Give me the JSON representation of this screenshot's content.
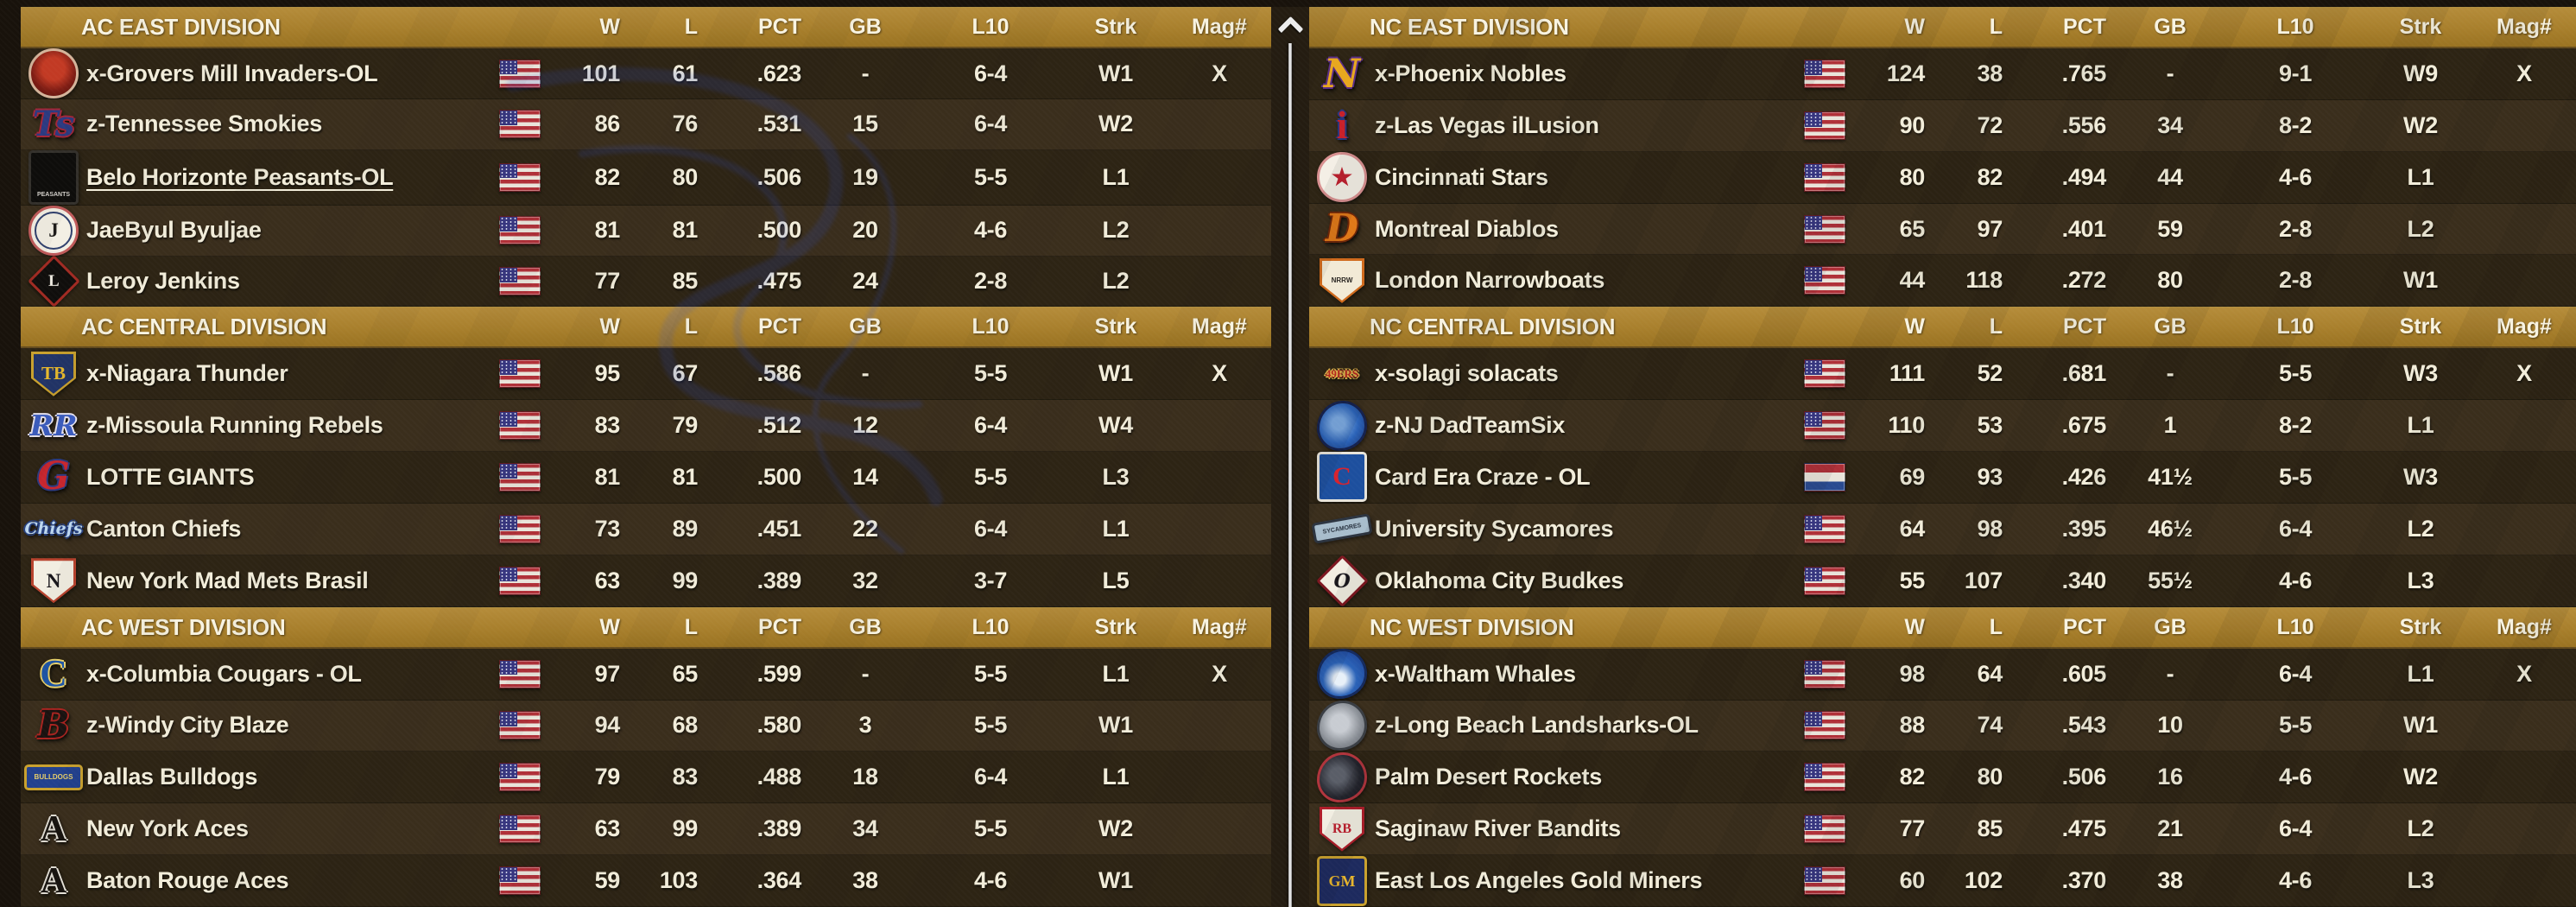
{
  "columns": [
    "W",
    "L",
    "PCT",
    "GB",
    "L10",
    "Strk",
    "Mag#"
  ],
  "scroll": {
    "direction": "up"
  },
  "panels": [
    {
      "side": "left",
      "divisions": [
        {
          "title": "AC EAST DIVISION",
          "teams": [
            {
              "name": "x-Grovers Mill Invaders-OL",
              "flag": "usa",
              "w": "101",
              "l": "61",
              "pct": ".623",
              "gb": "-",
              "l10": "6-4",
              "strk": "W1",
              "mag": "X",
              "logo": {
                "s": "circle",
                "bg": "radial-gradient(circle at 50% 40%, #c23a24 0 32%, #7e1d14 62%, #4e100b 100%)",
                "bd": "#d4b49a",
                "t": "",
                "fg": "#f2d8c0",
                "fs": 10
              }
            },
            {
              "name": "z-Tennessee Smokies",
              "flag": "usa",
              "w": "86",
              "l": "76",
              "pct": ".531",
              "gb": "15",
              "l10": "6-4",
              "strk": "W2",
              "mag": "",
              "logo": {
                "s": "text",
                "t": "Ts",
                "fg": "#2c3a80",
                "fs": 40,
                "f": "script",
                "sh": "#a32638"
              }
            },
            {
              "name": "Belo Horizonte Peasants-OL",
              "underline": true,
              "flag": "usa",
              "w": "82",
              "l": "80",
              "pct": ".506",
              "gb": "19",
              "l10": "5-5",
              "strk": "L1",
              "mag": "",
              "logo": {
                "s": "square",
                "bg": "#0e0d0b",
                "bd": "#34312c",
                "t": "PEASANTS",
                "fg": "#d8d5cf",
                "fs": 7,
                "pos": "bottom"
              }
            },
            {
              "name": "JaeByul Byuljae",
              "flag": "usa",
              "w": "81",
              "l": "81",
              "pct": ".500",
              "gb": "20",
              "l10": "4-6",
              "strk": "L2",
              "mag": "",
              "logo": {
                "s": "circle",
                "bg": "#f3efe4",
                "bd": "#c05a5a",
                "ring": "#30406e",
                "t": "J",
                "fg": "#1c1a18",
                "fs": 23,
                "f": "serif"
              }
            },
            {
              "name": "Leroy Jenkins",
              "flag": "usa",
              "w": "77",
              "l": "85",
              "pct": ".475",
              "gb": "24",
              "l10": "2-8",
              "strk": "L2",
              "mag": "",
              "logo": {
                "s": "diamond",
                "bg": "#100e0c",
                "bd": "#a02a22",
                "t": "L",
                "fg": "#f0ece2",
                "fs": 19,
                "f": "serif"
              }
            }
          ]
        },
        {
          "title": "AC CENTRAL DIVISION",
          "teams": [
            {
              "name": "x-Niagara Thunder",
              "flag": "usa",
              "w": "95",
              "l": "67",
              "pct": ".586",
              "gb": "-",
              "l10": "5-5",
              "strk": "W1",
              "mag": "X",
              "logo": {
                "s": "plate",
                "bg": "#223468",
                "bd": "#c9a12e",
                "t": "TB",
                "fg": "#e8b92d",
                "fs": 21,
                "f": "serif"
              }
            },
            {
              "name": "z-Missoula Running Rebels",
              "flag": "usa",
              "w": "83",
              "l": "79",
              "pct": ".512",
              "gb": "12",
              "l10": "6-4",
              "strk": "W4",
              "mag": "",
              "logo": {
                "s": "text",
                "t": "RR",
                "fg": "#3b5cc0",
                "fs": 33,
                "f": "script",
                "sh": "#e8e4f0"
              }
            },
            {
              "name": "LOTTE GIANTS",
              "flag": "usa",
              "w": "81",
              "l": "81",
              "pct": ".500",
              "gb": "14",
              "l10": "5-5",
              "strk": "L3",
              "mag": "",
              "logo": {
                "s": "text",
                "t": "G",
                "fg": "#c6262e",
                "fs": 44,
                "f": "script",
                "sh": "#2c3a80"
              }
            },
            {
              "name": "Canton Chiefs",
              "flag": "usa",
              "w": "73",
              "l": "89",
              "pct": ".451",
              "gb": "22",
              "l10": "6-4",
              "strk": "L1",
              "mag": "",
              "logo": {
                "s": "text",
                "t": "Chiefs",
                "fg": "#bcd6ee",
                "fs": 19,
                "f": "script",
                "sh": "#27407e"
              }
            },
            {
              "name": "New York Mad Mets Brasil",
              "flag": "usa",
              "w": "63",
              "l": "99",
              "pct": ".389",
              "gb": "32",
              "l10": "3-7",
              "strk": "L5",
              "mag": "",
              "logo": {
                "s": "plate",
                "bg": "#f2eee2",
                "bd": "#b8432e",
                "t": "N",
                "fg": "#17151a",
                "fs": 23,
                "f": "serif"
              }
            }
          ]
        },
        {
          "title": "AC WEST DIVISION",
          "teams": [
            {
              "name": "x-Columbia Cougars - OL",
              "flag": "usa",
              "w": "97",
              "l": "65",
              "pct": ".599",
              "gb": "-",
              "l10": "5-5",
              "strk": "L1",
              "mag": "X",
              "logo": {
                "s": "text",
                "t": "C",
                "fg": "#1d55a8",
                "fs": 44,
                "f": "serif",
                "sh": "#e8d06a"
              }
            },
            {
              "name": "z-Windy City Blaze",
              "flag": "usa",
              "w": "94",
              "l": "68",
              "pct": ".580",
              "gb": "3",
              "l10": "5-5",
              "strk": "W1",
              "mag": "",
              "logo": {
                "s": "text",
                "t": "B",
                "fg": "#1a1210",
                "fs": 44,
                "f": "script",
                "sh": "#a82420"
              }
            },
            {
              "name": "Dallas Bulldogs",
              "flag": "usa",
              "w": "79",
              "l": "83",
              "pct": ".488",
              "gb": "18",
              "l10": "6-4",
              "strk": "L1",
              "mag": "",
              "logo": {
                "s": "pill",
                "bg": "#23418e",
                "bd": "#c9a12e",
                "t": "BULLDOGS",
                "fg": "#e8cf6a",
                "fs": 8,
                "w": 62,
                "h": 24
              }
            },
            {
              "name": "New York Aces",
              "flag": "usa",
              "w": "63",
              "l": "99",
              "pct": ".389",
              "gb": "34",
              "l10": "5-5",
              "strk": "W2",
              "mag": "",
              "logo": {
                "s": "text",
                "t": "A",
                "fg": "#17130f",
                "fs": 42,
                "f": "serif",
                "sh": "#e4e0d6"
              }
            },
            {
              "name": "Baton Rouge Aces",
              "flag": "usa",
              "w": "59",
              "l": "103",
              "pct": ".364",
              "gb": "38",
              "l10": "4-6",
              "strk": "W1",
              "mag": "",
              "logo": {
                "s": "text",
                "t": "A",
                "fg": "#17130f",
                "fs": 42,
                "f": "serif",
                "sh": "#e4e0d6"
              }
            }
          ]
        }
      ]
    },
    {
      "side": "right",
      "divisions": [
        {
          "title": "NC EAST DIVISION",
          "teams": [
            {
              "name": "x-Phoenix Nobles",
              "flag": "usa",
              "w": "124",
              "l": "38",
              "pct": ".765",
              "gb": "-",
              "l10": "9-1",
              "strk": "W9",
              "mag": "X",
              "logo": {
                "s": "text",
                "t": "N",
                "fg": "#e8a81e",
                "fs": 46,
                "f": "script",
                "sh": "#5a2d86"
              }
            },
            {
              "name": "z-Las Vegas ilLusion",
              "flag": "usa",
              "w": "90",
              "l": "72",
              "pct": ".556",
              "gb": "34",
              "l10": "8-2",
              "strk": "W2",
              "mag": "",
              "logo": {
                "s": "text",
                "t": "i",
                "fg": "#c8202a",
                "fs": 46,
                "f": "serif",
                "sh": "#27357e"
              }
            },
            {
              "name": "Cincinnati Stars",
              "flag": "usa",
              "w": "80",
              "l": "82",
              "pct": ".494",
              "gb": "44",
              "l10": "4-6",
              "strk": "L1",
              "mag": "",
              "logo": {
                "s": "circle",
                "bg": "#f4efe6",
                "bd": "#d89090",
                "t": "★",
                "fg": "#c01f2e",
                "fs": 27
              }
            },
            {
              "name": "Montreal Diablos",
              "flag": "usa",
              "w": "65",
              "l": "97",
              "pct": ".401",
              "gb": "59",
              "l10": "2-8",
              "strk": "L2",
              "mag": "",
              "logo": {
                "s": "text",
                "t": "D",
                "fg": "#e07818",
                "fs": 44,
                "f": "script",
                "sh": "#6e2608"
              }
            },
            {
              "name": "London Narrowboats",
              "flag": "usa",
              "w": "44",
              "l": "118",
              "pct": ".272",
              "gb": "80",
              "l10": "2-8",
              "strk": "W1",
              "mag": "",
              "logo": {
                "s": "plate",
                "bg": "#f2ead6",
                "bd": "#d06a1c",
                "t": "NRRW",
                "fg": "#2a2622",
                "fs": 8
              }
            }
          ]
        },
        {
          "title": "NC CENTRAL DIVISION",
          "teams": [
            {
              "name": "x-solagi solacats",
              "flag": "usa",
              "w": "111",
              "l": "52",
              "pct": ".681",
              "gb": "-",
              "l10": "5-5",
              "strk": "W3",
              "mag": "X",
              "logo": {
                "s": "text",
                "t": "49ERS",
                "fg": "#b5271f",
                "fs": 13,
                "f": "serif",
                "sh": "#d9b04a"
              }
            },
            {
              "name": "z-NJ DadTeamSix",
              "flag": "usa",
              "w": "110",
              "l": "53",
              "pct": ".675",
              "gb": "1",
              "l10": "8-2",
              "strk": "L1",
              "mag": "",
              "logo": {
                "s": "blob",
                "bg": "radial-gradient(circle at 42% 45%, #7aa8e0 0 18%, #2b63b8 55%, #17306e 100%)",
                "bd": "#15224e",
                "t": "",
                "fg": "#ffffff",
                "fs": 10
              }
            },
            {
              "name": "Card Era Craze - OL",
              "flag": "ned",
              "w": "69",
              "l": "93",
              "pct": ".426",
              "gb": "41½",
              "l10": "5-5",
              "strk": "W3",
              "mag": "",
              "logo": {
                "s": "square",
                "bg": "#1d4f9e",
                "bd": "#e8e4da",
                "t": "C",
                "fg": "#d8232e",
                "fs": 30,
                "f": "serif"
              }
            },
            {
              "name": "University Sycamores",
              "flag": "usa",
              "w": "64",
              "l": "98",
              "pct": ".395",
              "gb": "46½",
              "l10": "6-4",
              "strk": "L2",
              "mag": "",
              "logo": {
                "s": "pill",
                "bg": "#a8bdcc",
                "bd": "#2c3440",
                "t": "SYCAMORES",
                "fg": "#27313e",
                "fs": 7,
                "w": 62,
                "h": 18,
                "rot": -10
              }
            },
            {
              "name": "Oklahoma City Budkes",
              "flag": "usa",
              "w": "55",
              "l": "107",
              "pct": ".340",
              "gb": "55½",
              "l10": "4-6",
              "strk": "L3",
              "mag": "",
              "logo": {
                "s": "diamond",
                "bg": "#f2eee2",
                "bd": "#7e1620",
                "t": "O",
                "fg": "#17151a",
                "fs": 22,
                "f": "script"
              }
            }
          ]
        },
        {
          "title": "NC WEST DIVISION",
          "teams": [
            {
              "name": "x-Waltham Whales",
              "flag": "usa",
              "w": "98",
              "l": "64",
              "pct": ".605",
              "gb": "-",
              "l10": "6-4",
              "strk": "L1",
              "mag": "X",
              "logo": {
                "s": "blob",
                "bg": "radial-gradient(circle at 45% 62%, #e8f0f8 0 16%, #2b63b8 45%, #1b3c8e 100%)",
                "bd": "#142a5e",
                "t": "",
                "fg": "#ffffff",
                "fs": 10
              }
            },
            {
              "name": "z-Long Beach Landsharks-OL",
              "flag": "usa",
              "w": "88",
              "l": "74",
              "pct": ".543",
              "gb": "10",
              "l10": "5-5",
              "strk": "W1",
              "mag": "",
              "logo": {
                "s": "blob",
                "bg": "radial-gradient(circle at 45% 45%, #c8ccd2 0 25%, #8a8f96 60%, #565a62 100%)",
                "bd": "#3a3e44",
                "t": "",
                "fg": "#ffffff",
                "fs": 10
              }
            },
            {
              "name": "Palm Desert Rockets",
              "flag": "usa",
              "w": "82",
              "l": "80",
              "pct": ".506",
              "gb": "16",
              "l10": "4-6",
              "strk": "W2",
              "mag": "",
              "logo": {
                "s": "blob",
                "bg": "radial-gradient(circle at 40% 45%, #5a5e68 0 20%, #23242c 60%, #14141a 100%)",
                "bd": "#b0343c",
                "t": "",
                "fg": "#ffffff",
                "fs": 10
              }
            },
            {
              "name": "Saginaw River Bandits",
              "flag": "usa",
              "w": "77",
              "l": "85",
              "pct": ".475",
              "gb": "21",
              "l10": "6-4",
              "strk": "L2",
              "mag": "",
              "logo": {
                "s": "plate",
                "bg": "#f2eee2",
                "bd": "#b01d2a",
                "t": "RB",
                "fg": "#c01f2e",
                "fs": 16,
                "f": "serif"
              }
            },
            {
              "name": "East Los Angeles Gold Miners",
              "flag": "usa",
              "w": "60",
              "l": "102",
              "pct": ".370",
              "gb": "38",
              "l10": "4-6",
              "strk": "L3",
              "mag": "",
              "logo": {
                "s": "square",
                "bg": "#1d2a5e",
                "bd": "#c9a12e",
                "t": "GM",
                "fg": "#e8b62c",
                "fs": 18,
                "f": "serif"
              }
            }
          ]
        }
      ]
    }
  ]
}
